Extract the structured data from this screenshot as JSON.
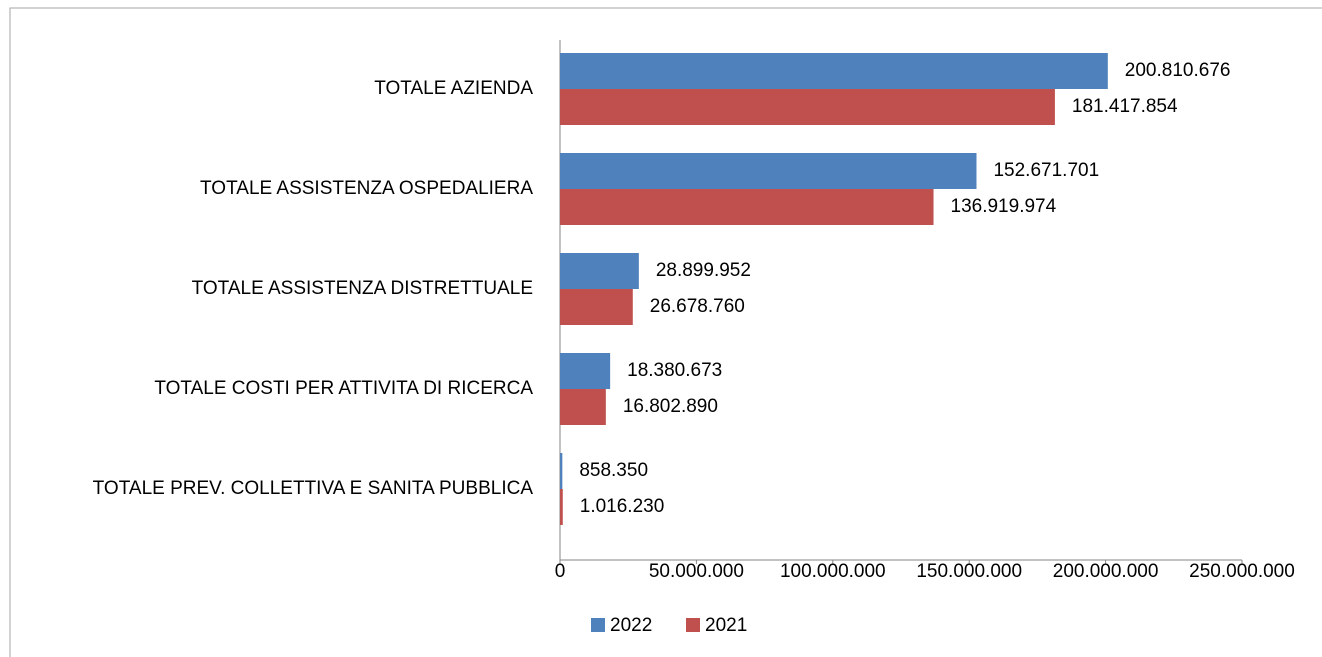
{
  "chart_data": {
    "type": "bar",
    "orientation": "horizontal",
    "categories": [
      "TOTALE AZIENDA",
      "TOTALE ASSISTENZA OSPEDALIERA",
      "TOTALE ASSISTENZA DISTRETTUALE",
      "TOTALE COSTI PER ATTIVITA DI RICERCA",
      "TOTALE PREV. COLLETTIVA E SANITA PUBBLICA"
    ],
    "series": [
      {
        "name": "2022",
        "color": "#4f81bd",
        "values": [
          200810676,
          152671701,
          28899952,
          18380673,
          858350
        ],
        "value_labels": [
          "200.810.676",
          "152.671.701",
          "28.899.952",
          "18.380.673",
          "858.350"
        ]
      },
      {
        "name": "2021",
        "color": "#c0504d",
        "values": [
          181417854,
          136919974,
          26678760,
          16802890,
          1016230
        ],
        "value_labels": [
          "181.417.854",
          "136.919.974",
          "26.678.760",
          "16.802.890",
          "1.016.230"
        ]
      }
    ],
    "xlim": [
      0,
      250000000
    ],
    "xticks": [
      0,
      {
        "value": 50000000,
        "label": "50.000.000"
      },
      {
        "value": 100000000,
        "label": "100.000.000"
      },
      {
        "value": 150000000,
        "label": "150.000.000"
      },
      {
        "value": 200000000,
        "label": "200.000.000"
      },
      {
        "value": 250000000,
        "label": "250.000.000"
      }
    ],
    "legend": "bottom"
  }
}
